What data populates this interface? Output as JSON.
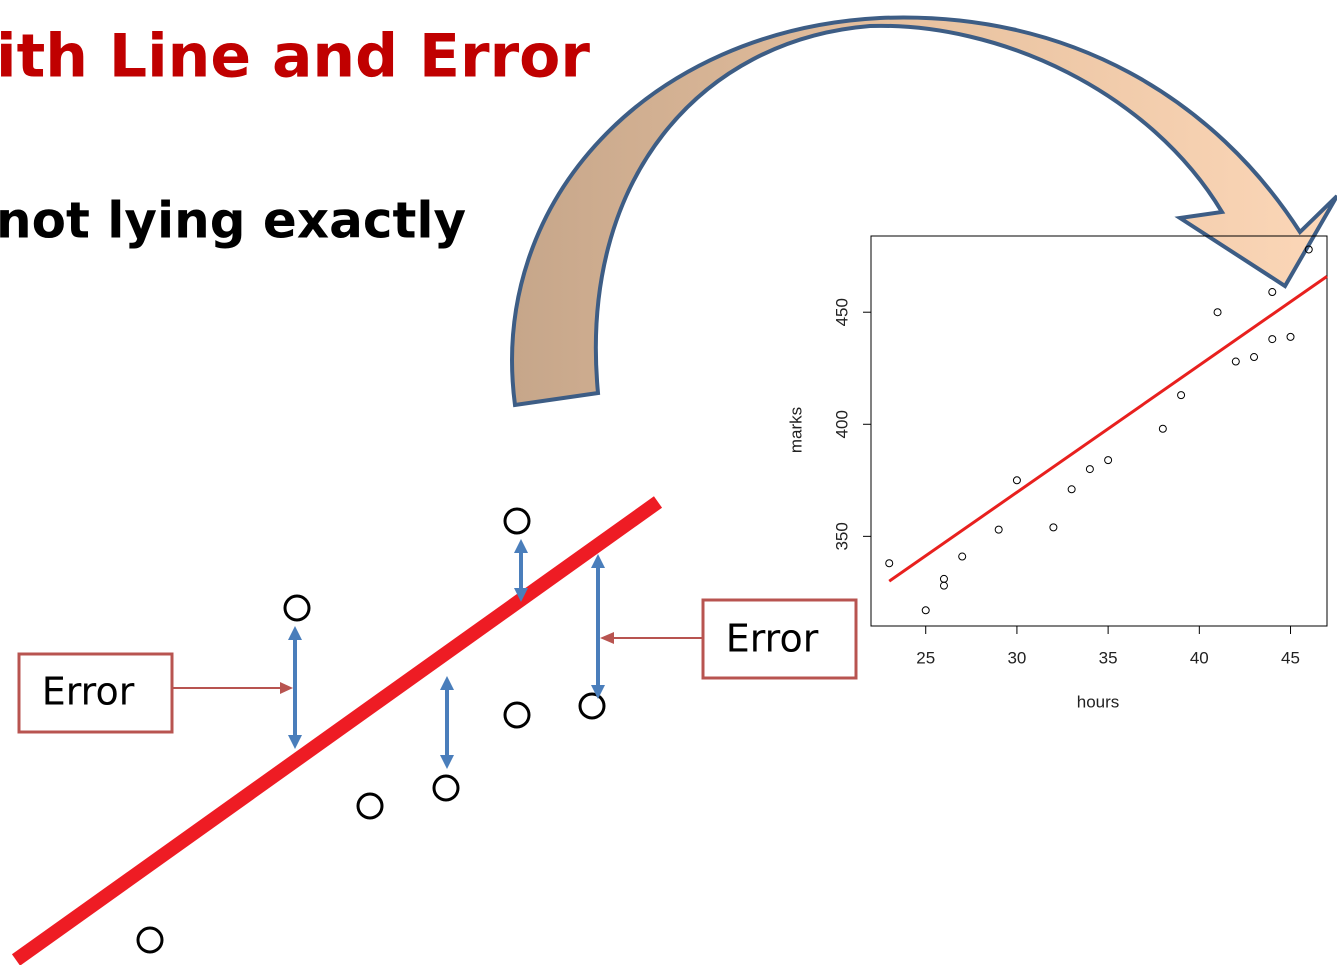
{
  "slide": {
    "title": "ith Line and Error",
    "text": "not lying exactly",
    "error_labels": [
      "Error",
      "Error"
    ]
  },
  "chart_data": {
    "type": "scatter",
    "x_label": "hours",
    "y_label": "marks",
    "x": [
      23,
      25,
      26,
      26,
      27,
      29,
      30,
      32,
      33,
      34,
      35,
      38,
      39,
      41,
      42,
      43,
      44,
      44,
      45,
      46
    ],
    "values": [
      338,
      317,
      331,
      328,
      341,
      353,
      375,
      354,
      371,
      380,
      384,
      398,
      413,
      450,
      428,
      430,
      459,
      438,
      439,
      478
    ],
    "color": "#000000",
    "fit_line": {
      "x": [
        23,
        47
      ],
      "y": [
        330,
        466
      ],
      "color": "#e8201e"
    },
    "xlim": [
      22,
      47
    ],
    "ylim": [
      310,
      484
    ],
    "xticks": [
      25,
      30,
      35,
      40,
      45
    ],
    "yticks": [
      350,
      400,
      450
    ]
  }
}
